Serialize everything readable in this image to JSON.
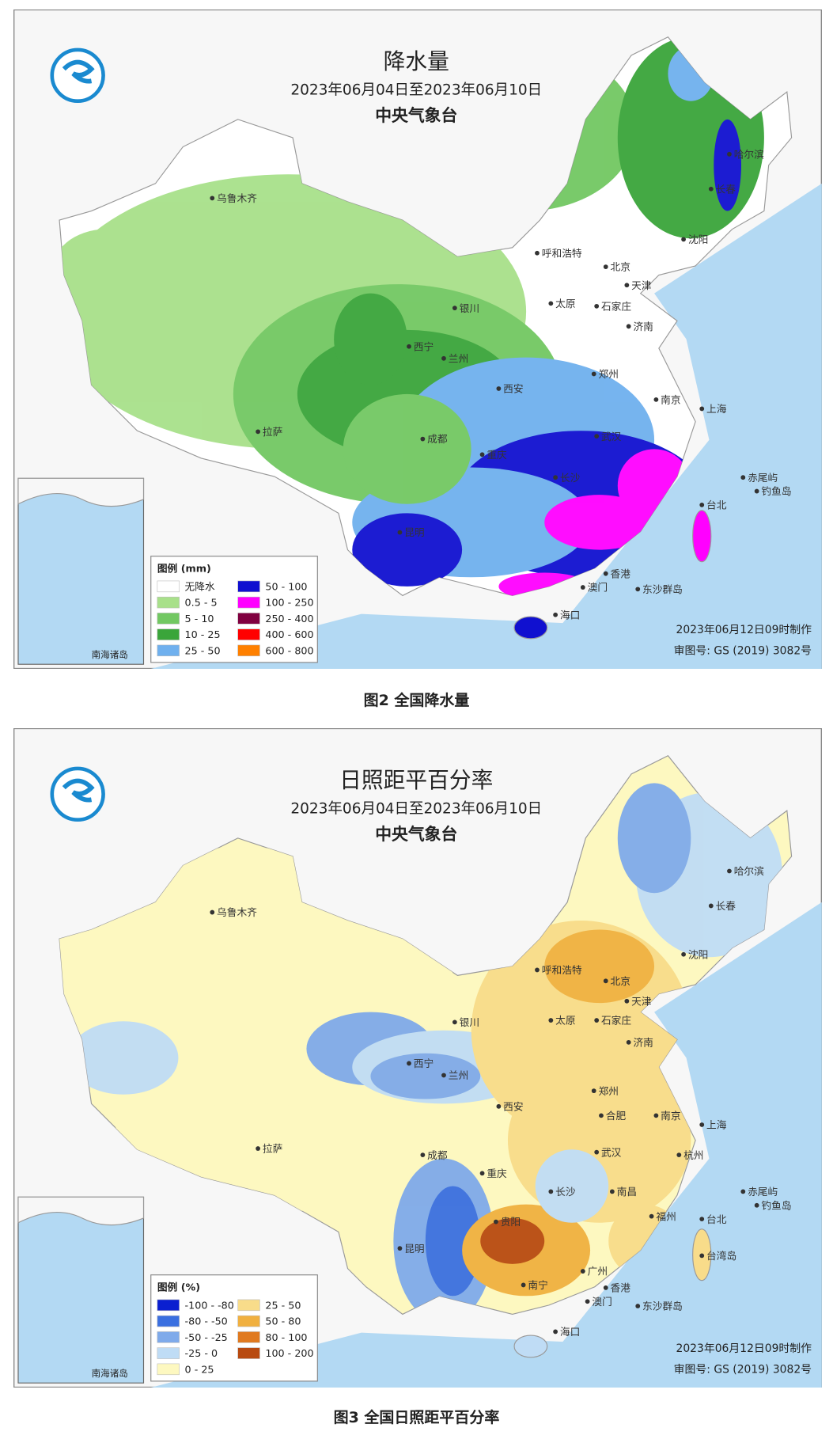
{
  "maps": [
    {
      "title": "降水量",
      "date_range": "2023年06月04日至2023年06月10日",
      "agency": "中央气象台",
      "legend_title": "图例 (mm)",
      "legend": [
        {
          "label": "无降水",
          "color": "#ffffff"
        },
        {
          "label": "0.5 - 5",
          "color": "#a8e08a"
        },
        {
          "label": "5 - 10",
          "color": "#72c862"
        },
        {
          "label": "10 - 25",
          "color": "#3aa53a"
        },
        {
          "label": "25 - 50",
          "color": "#6fb0ee"
        },
        {
          "label": "50 - 100",
          "color": "#1010d0"
        },
        {
          "label": "100 - 250",
          "color": "#ff00ff"
        },
        {
          "label": "250 - 400",
          "color": "#800040"
        },
        {
          "label": "400 - 600",
          "color": "#ff0000"
        },
        {
          "label": "600 - 800",
          "color": "#ff8000"
        }
      ],
      "cities": [
        "乌鲁木齐",
        "哈尔滨",
        "长春",
        "沈阳",
        "呼和浩特",
        "北京",
        "天津",
        "银川",
        "太原",
        "石家庄",
        "济南",
        "西宁",
        "兰州",
        "郑州",
        "西安",
        "南京",
        "上海",
        "拉萨",
        "成都",
        "武汉",
        "重庆",
        "长沙",
        "台北",
        "赤尾屿",
        "钓鱼岛",
        "香港",
        "澳门",
        "东沙群岛",
        "海口",
        "昆明"
      ],
      "inset_label": "南海诸岛",
      "production_note": "2023年06月12日09时制作",
      "approval": "审图号: GS (2019) 3082号",
      "caption": "图2 全国降水量"
    },
    {
      "title": "日照距平百分率",
      "date_range": "2023年06月04日至2023年06月10日",
      "agency": "中央气象台",
      "legend_title": "图例 (%)",
      "legend": [
        {
          "label": "-100 - -80",
          "color": "#0a1fd0"
        },
        {
          "label": "-80 - -50",
          "color": "#3a6fe0"
        },
        {
          "label": "-50 - -25",
          "color": "#7faaea"
        },
        {
          "label": "-25 - 0",
          "color": "#bfdcf5"
        },
        {
          "label": "0 - 25",
          "color": "#fdf8c0"
        },
        {
          "label": "25 - 50",
          "color": "#f8dc8a"
        },
        {
          "label": "50 - 80",
          "color": "#f0b040"
        },
        {
          "label": "80 - 100",
          "color": "#e07a20"
        },
        {
          "label": "100 - 200",
          "color": "#b84a10"
        }
      ],
      "cities": [
        "乌鲁木齐",
        "哈尔滨",
        "长春",
        "沈阳",
        "呼和浩特",
        "北京",
        "天津",
        "银川",
        "太原",
        "石家庄",
        "济南",
        "西宁",
        "兰州",
        "郑州",
        "西安",
        "合肥",
        "南京",
        "上海",
        "拉萨",
        "成都",
        "武汉",
        "杭州",
        "重庆",
        "长沙",
        "南昌",
        "福州",
        "贵阳",
        "台北",
        "昆明",
        "广州",
        "南宁",
        "香港",
        "澳门",
        "东沙群岛",
        "海口",
        "赤尾屿",
        "钓鱼岛",
        "台湾岛"
      ],
      "inset_label": "南海诸岛",
      "production_note": "2023年06月12日09时制作",
      "approval": "审图号: GS (2019) 3082号",
      "caption": "图3 全国日照距平百分率"
    }
  ]
}
